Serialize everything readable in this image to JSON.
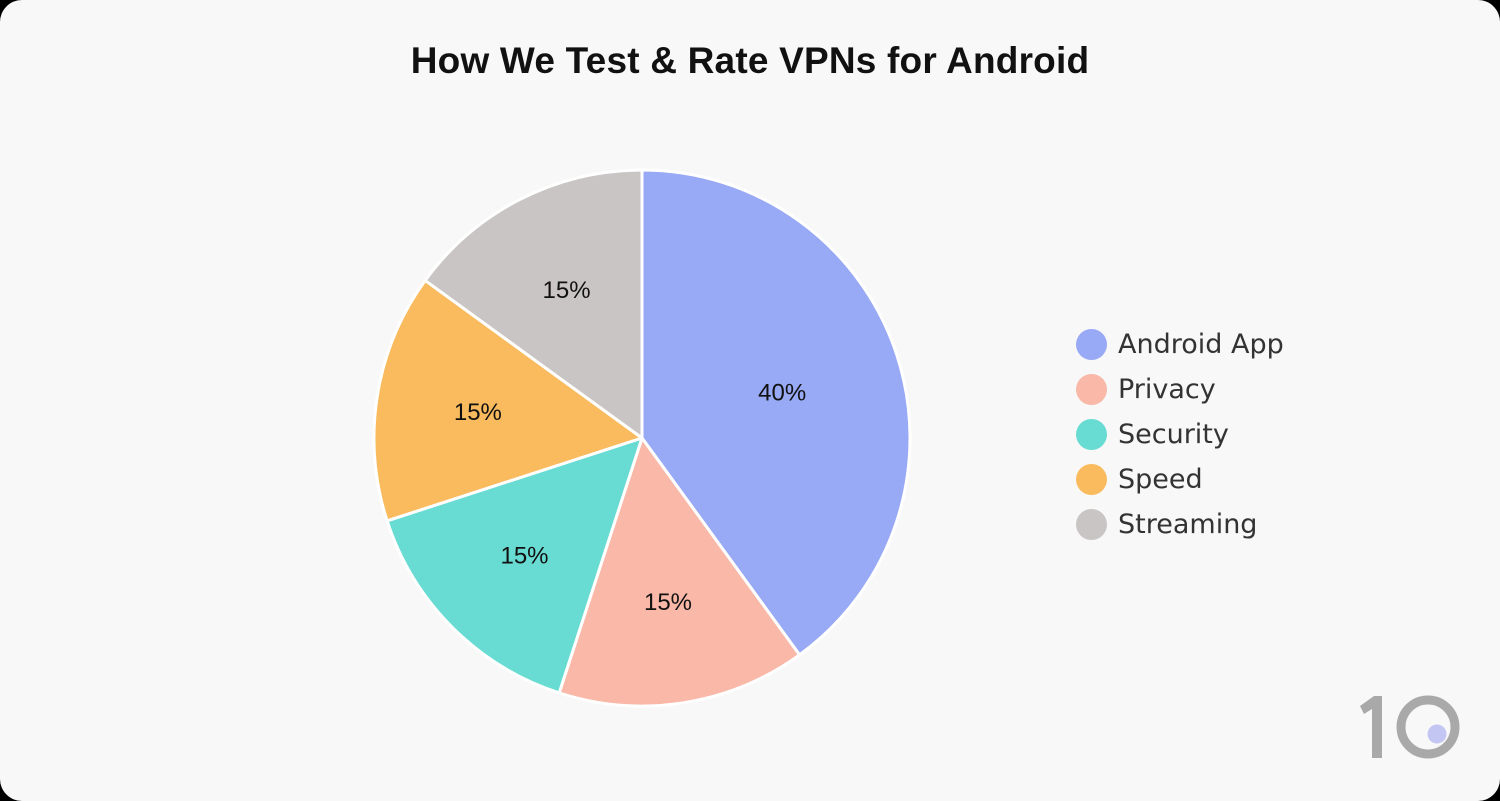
{
  "title": "How We Test & Rate VPNs for Android",
  "chart_data": {
    "type": "pie",
    "title": "How We Test & Rate VPNs for Android",
    "categories": [
      "Android App",
      "Privacy",
      "Security",
      "Speed",
      "Streaming"
    ],
    "values": [
      40,
      15,
      15,
      15,
      15
    ],
    "labels": [
      "40%",
      "15%",
      "15%",
      "15%",
      "15%"
    ],
    "colors": [
      "#98a9f5",
      "#f9b8a8",
      "#68dbd2",
      "#f9bb5e",
      "#c8c5c4"
    ],
    "start_angle_deg": 0,
    "direction": "clockwise",
    "legend_position": "right"
  },
  "legend": [
    {
      "label": "Android App",
      "color": "#98a9f5"
    },
    {
      "label": "Privacy",
      "color": "#f9b8a8"
    },
    {
      "label": "Security",
      "color": "#68dbd2"
    },
    {
      "label": "Speed",
      "color": "#f9bb5e"
    },
    {
      "label": "Streaming",
      "color": "#c8c5c4"
    }
  ],
  "logo": {
    "text": "10",
    "digit_color": "#a9a9a9",
    "dot_color": "#c3c6f2"
  }
}
